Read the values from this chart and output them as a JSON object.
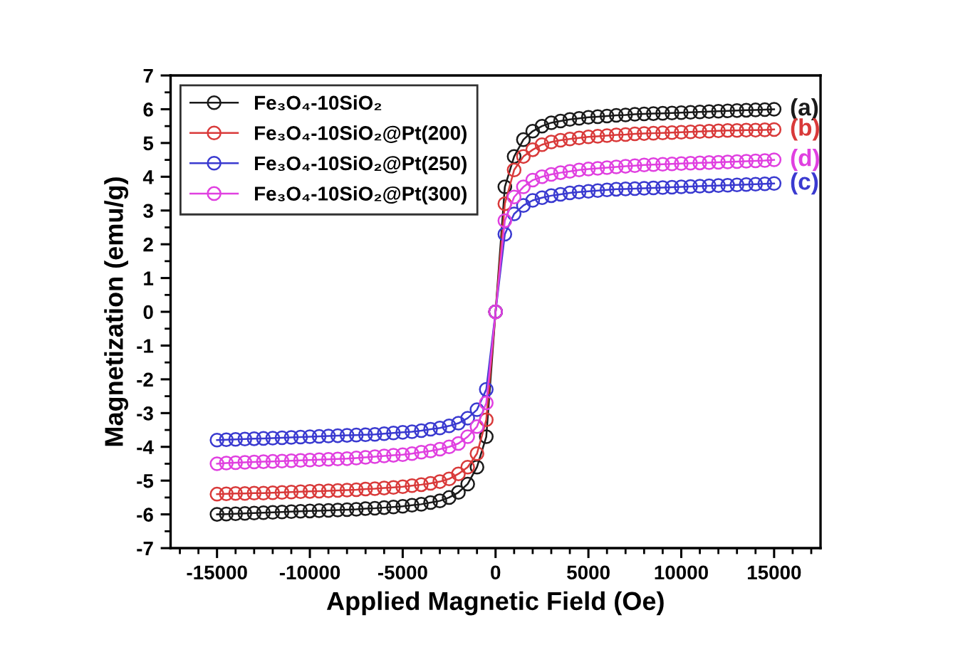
{
  "chart_data": {
    "type": "line",
    "xlabel": "Applied Magnetic Field (Oe)",
    "ylabel": "Magnetization (emu/g)",
    "x": [
      -15000,
      -14500,
      -14000,
      -13500,
      -13000,
      -12500,
      -12000,
      -11500,
      -11000,
      -10500,
      -10000,
      -9500,
      -9000,
      -8500,
      -8000,
      -7500,
      -7000,
      -6500,
      -6000,
      -5500,
      -5000,
      -4500,
      -4000,
      -3500,
      -3000,
      -2500,
      -2000,
      -1500,
      -1000,
      -500,
      0,
      500,
      1000,
      1500,
      2000,
      2500,
      3000,
      3500,
      4000,
      4500,
      5000,
      5500,
      6000,
      6500,
      7000,
      7500,
      8000,
      8500,
      9000,
      9500,
      10000,
      10500,
      11000,
      11500,
      12000,
      12500,
      13000,
      13500,
      14000,
      14500,
      15000
    ],
    "series": [
      {
        "name": "Fe₃O₄-10SiO₂",
        "color": "#1a1a1a",
        "values": [
          -6.0,
          -5.99,
          -5.98,
          -5.97,
          -5.96,
          -5.95,
          -5.94,
          -5.93,
          -5.92,
          -5.91,
          -5.9,
          -5.89,
          -5.88,
          -5.87,
          -5.86,
          -5.85,
          -5.83,
          -5.82,
          -5.8,
          -5.78,
          -5.76,
          -5.73,
          -5.7,
          -5.65,
          -5.6,
          -5.5,
          -5.35,
          -5.1,
          -4.6,
          -3.7,
          0,
          3.7,
          4.6,
          5.1,
          5.35,
          5.5,
          5.6,
          5.65,
          5.7,
          5.73,
          5.76,
          5.78,
          5.8,
          5.82,
          5.83,
          5.85,
          5.86,
          5.87,
          5.88,
          5.89,
          5.9,
          5.91,
          5.92,
          5.93,
          5.94,
          5.95,
          5.96,
          5.97,
          5.98,
          5.99,
          6.0
        ]
      },
      {
        "name": "Fe₃O₄-10SiO₂@Pt(200)",
        "color": "#d93a3a",
        "values": [
          -5.4,
          -5.39,
          -5.38,
          -5.38,
          -5.37,
          -5.37,
          -5.36,
          -5.35,
          -5.34,
          -5.33,
          -5.32,
          -5.31,
          -5.3,
          -5.29,
          -5.28,
          -5.27,
          -5.25,
          -5.24,
          -5.22,
          -5.2,
          -5.18,
          -5.15,
          -5.12,
          -5.08,
          -5.03,
          -4.95,
          -4.8,
          -4.6,
          -4.2,
          -3.2,
          0,
          3.2,
          4.2,
          4.6,
          4.8,
          4.95,
          5.03,
          5.08,
          5.12,
          5.15,
          5.18,
          5.2,
          5.22,
          5.24,
          5.25,
          5.27,
          5.28,
          5.29,
          5.3,
          5.31,
          5.32,
          5.33,
          5.34,
          5.35,
          5.36,
          5.37,
          5.37,
          5.38,
          5.38,
          5.39,
          5.4
        ]
      },
      {
        "name": "Fe₃O₄-10SiO₂@Pt(250)",
        "color": "#3a3ad0",
        "values": [
          -3.8,
          -3.79,
          -3.78,
          -3.77,
          -3.76,
          -3.75,
          -3.74,
          -3.73,
          -3.72,
          -3.71,
          -3.7,
          -3.69,
          -3.68,
          -3.67,
          -3.66,
          -3.65,
          -3.64,
          -3.63,
          -3.61,
          -3.59,
          -3.57,
          -3.55,
          -3.52,
          -3.48,
          -3.44,
          -3.38,
          -3.3,
          -3.15,
          -2.9,
          -2.3,
          0,
          2.3,
          2.9,
          3.15,
          3.3,
          3.38,
          3.44,
          3.48,
          3.52,
          3.55,
          3.57,
          3.59,
          3.61,
          3.63,
          3.64,
          3.65,
          3.66,
          3.67,
          3.68,
          3.69,
          3.7,
          3.71,
          3.72,
          3.73,
          3.74,
          3.75,
          3.76,
          3.77,
          3.78,
          3.79,
          3.8
        ]
      },
      {
        "name": "Fe₃O₄-10SiO₂@Pt(300)",
        "color": "#e040e0",
        "values": [
          -4.5,
          -4.48,
          -4.47,
          -4.46,
          -4.45,
          -4.44,
          -4.43,
          -4.42,
          -4.41,
          -4.4,
          -4.39,
          -4.38,
          -4.37,
          -4.36,
          -4.35,
          -4.33,
          -4.31,
          -4.29,
          -4.27,
          -4.25,
          -4.23,
          -4.2,
          -4.16,
          -4.12,
          -4.07,
          -4.0,
          -3.9,
          -3.7,
          -3.4,
          -2.7,
          0,
          2.7,
          3.4,
          3.7,
          3.9,
          4.0,
          4.07,
          4.12,
          4.16,
          4.2,
          4.23,
          4.25,
          4.27,
          4.29,
          4.31,
          4.33,
          4.35,
          4.36,
          4.37,
          4.38,
          4.39,
          4.4,
          4.41,
          4.42,
          4.43,
          4.44,
          4.45,
          4.46,
          4.47,
          4.48,
          4.5
        ]
      }
    ],
    "annotations": [
      "(a)",
      "(b)",
      "(d)",
      "(c)"
    ],
    "xlim": [
      -17500,
      17500
    ],
    "xticks": [
      -15000,
      -10000,
      -5000,
      0,
      5000,
      10000,
      15000
    ],
    "ylim": [
      -7,
      7
    ],
    "yticks": [
      -7,
      -6,
      -5,
      -4,
      -3,
      -2,
      -1,
      0,
      1,
      2,
      3,
      4,
      5,
      6,
      7
    ],
    "marker": "circle",
    "line_style": "solid",
    "legend": "top left",
    "grid": false
  }
}
